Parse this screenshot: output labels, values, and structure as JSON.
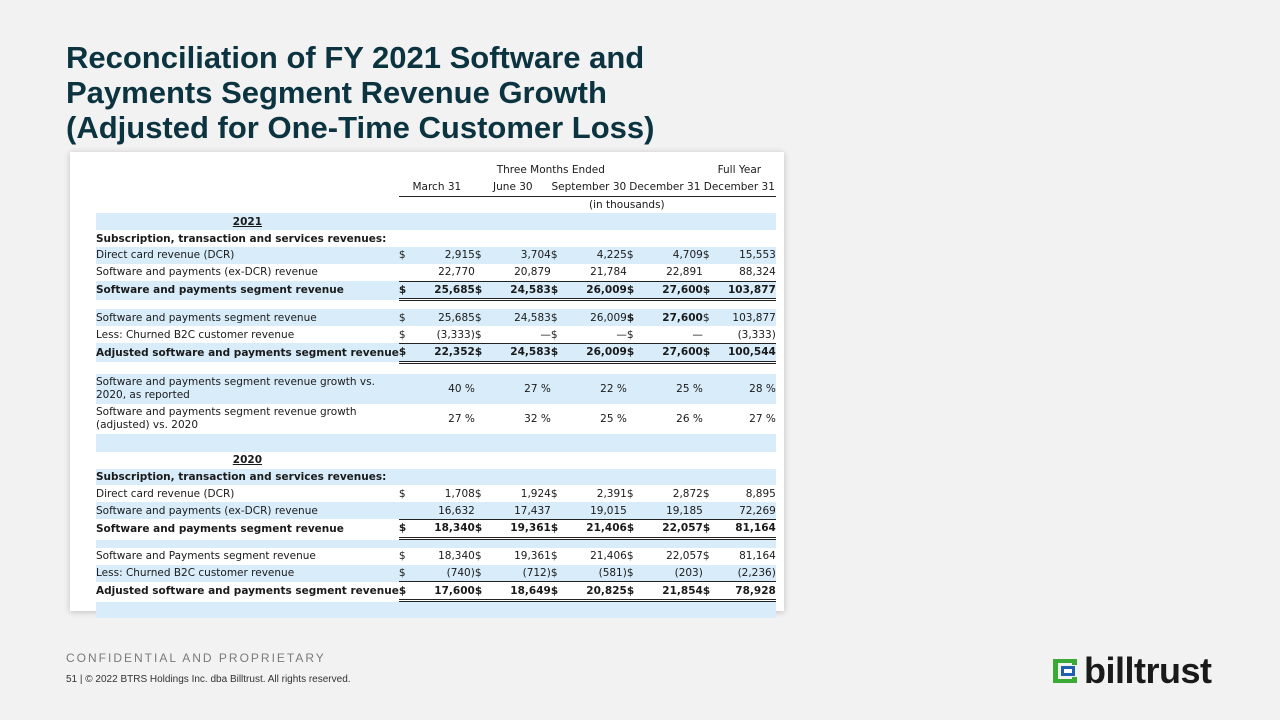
{
  "title_line1": "Reconciliation of FY 2021 Software and",
  "title_line2": "Payments Segment Revenue Growth",
  "title_line3": "(Adjusted for One-Time Customer Loss)",
  "header": {
    "three_months": "Three Months Ended",
    "full_year": "Full Year",
    "cols": [
      "March 31",
      "June 30",
      "September 30",
      "December 31",
      "December 31"
    ],
    "in_thousands": "(in thousands)"
  },
  "sections": [
    {
      "year": "2021",
      "subtitle": "Subscription, transaction and services revenues:",
      "dcr": {
        "label": "Direct card revenue (DCR)",
        "cur": [
          "$",
          "$",
          "$",
          "$",
          "$"
        ],
        "vals": [
          "2,915",
          "3,704",
          "4,225",
          "4,709",
          "15,553"
        ]
      },
      "exdcr": {
        "label": "Software and payments (ex-DCR) revenue",
        "vals": [
          "22,770",
          "20,879",
          "21,784",
          "22,891",
          "88,324"
        ]
      },
      "segment": {
        "label": "Software and payments segment revenue",
        "cur": [
          "$",
          "$",
          "$",
          "$",
          "$"
        ],
        "vals": [
          "25,685",
          "24,583",
          "26,009",
          "27,600",
          "103,877"
        ]
      },
      "seg2": {
        "label": "Software and payments segment revenue",
        "cur": [
          "$",
          "$",
          "$",
          "$",
          "$"
        ],
        "vals": [
          "25,685",
          "24,583",
          "26,009",
          "27,600",
          "103,877"
        ]
      },
      "churn": {
        "label": "Less: Churned B2C customer revenue",
        "cur": [
          "$",
          "$",
          "$",
          "$",
          ""
        ],
        "vals": [
          "(3,333)",
          "—",
          "—",
          "—",
          "(3,333)"
        ]
      },
      "adjusted": {
        "label": "Adjusted software and payments segment revenue",
        "cur": [
          "$",
          "$",
          "$",
          "$",
          "$"
        ],
        "vals": [
          "22,352",
          "24,583",
          "26,009",
          "27,600",
          "100,544"
        ]
      }
    },
    {
      "year": "2020",
      "subtitle": "Subscription, transaction and services revenues:",
      "dcr": {
        "label": "Direct card revenue (DCR)",
        "cur": [
          "$",
          "$",
          "$",
          "$",
          "$"
        ],
        "vals": [
          "1,708",
          "1,924",
          "2,391",
          "2,872",
          "8,895"
        ]
      },
      "exdcr": {
        "label": "Software and payments (ex-DCR) revenue",
        "vals": [
          "16,632",
          "17,437",
          "19,015",
          "19,185",
          "72,269"
        ]
      },
      "segment": {
        "label": "Software and payments segment revenue",
        "cur": [
          "$",
          "$",
          "$",
          "$",
          "$"
        ],
        "vals": [
          "18,340",
          "19,361",
          "21,406",
          "22,057",
          "81,164"
        ]
      },
      "seg2": {
        "label": "Software and Payments segment revenue",
        "cur": [
          "$",
          "$",
          "$",
          "$",
          "$"
        ],
        "vals": [
          "18,340",
          "19,361",
          "21,406",
          "22,057",
          "81,164"
        ]
      },
      "churn": {
        "label": "Less: Churned B2C customer revenue",
        "cur": [
          "$",
          "$",
          "$",
          "$",
          ""
        ],
        "vals": [
          "(740)",
          "(712)",
          "(581)",
          "(203)",
          "(2,236)"
        ]
      },
      "adjusted": {
        "label": "Adjusted software and payments segment revenue",
        "cur": [
          "$",
          "$",
          "$",
          "$",
          "$"
        ],
        "vals": [
          "17,600",
          "18,649",
          "20,825",
          "21,854",
          "78,928"
        ]
      }
    }
  ],
  "growth": [
    {
      "label": "Software and payments segment revenue growth vs. 2020, as reported",
      "vals": [
        "40 %",
        "27 %",
        "22 %",
        "25 %",
        "28 %"
      ]
    },
    {
      "label": "Software and payments segment revenue growth (adjusted) vs. 2020",
      "vals": [
        "27 %",
        "32 %",
        "25 %",
        "26 %",
        "27 %"
      ]
    }
  ],
  "footer": {
    "confidential": "CONFIDENTIAL AND PROPRIETARY",
    "copyright": "51  |  © 2022 BTRS Holdings Inc. dba Billtrust. All rights reserved.",
    "logo_text": "billtrust"
  },
  "colors": {
    "title": "#0c3440",
    "row_band": "#d8ecfa",
    "logo_green": "#3aa935",
    "logo_blue": "#1f5fae"
  }
}
